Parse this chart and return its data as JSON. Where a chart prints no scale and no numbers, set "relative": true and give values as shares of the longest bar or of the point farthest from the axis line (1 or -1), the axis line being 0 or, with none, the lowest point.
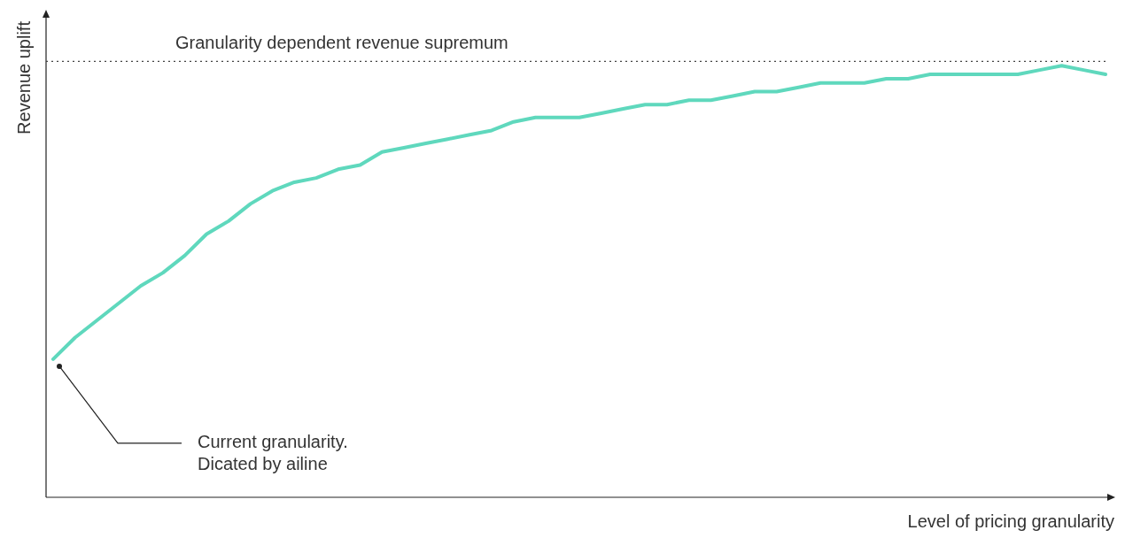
{
  "chart_data": {
    "type": "line",
    "relative": true,
    "xlabel": "Level of pricing granularity",
    "ylabel": "Revenue uplift",
    "categories": [
      null,
      null,
      null,
      null,
      null,
      null,
      null,
      null,
      null,
      null,
      null,
      null,
      null,
      null,
      null,
      null,
      null,
      null,
      null,
      null,
      null,
      null,
      null,
      null,
      null,
      null,
      null,
      null,
      null,
      null,
      null,
      null,
      null,
      null,
      null,
      null,
      null,
      null,
      null,
      null,
      null,
      null,
      null,
      null,
      null,
      null,
      null,
      null,
      null
    ],
    "series": [
      {
        "color": "#5fd8bd",
        "values": [
          0.32,
          0.37,
          0.41,
          0.45,
          0.49,
          0.52,
          0.56,
          0.61,
          0.64,
          0.68,
          0.71,
          0.73,
          0.74,
          0.76,
          0.77,
          0.8,
          0.81,
          0.82,
          0.83,
          0.84,
          0.85,
          0.87,
          0.88,
          0.88,
          0.88,
          0.89,
          0.9,
          0.91,
          0.91,
          0.92,
          0.92,
          0.93,
          0.94,
          0.94,
          0.95,
          0.96,
          0.96,
          0.96,
          0.97,
          0.97,
          0.98,
          0.98,
          0.98,
          0.98,
          0.98,
          0.99,
          1,
          0.99,
          0.98
        ]
      }
    ],
    "ref_lines": [
      {
        "axis": "y",
        "value": 1.01,
        "label": "Granularity dependent revenue supremum",
        "color": "#444444",
        "line_style": "dotted"
      }
    ],
    "annotations": [
      "Current granularity.\nDicated by ailine"
    ]
  }
}
